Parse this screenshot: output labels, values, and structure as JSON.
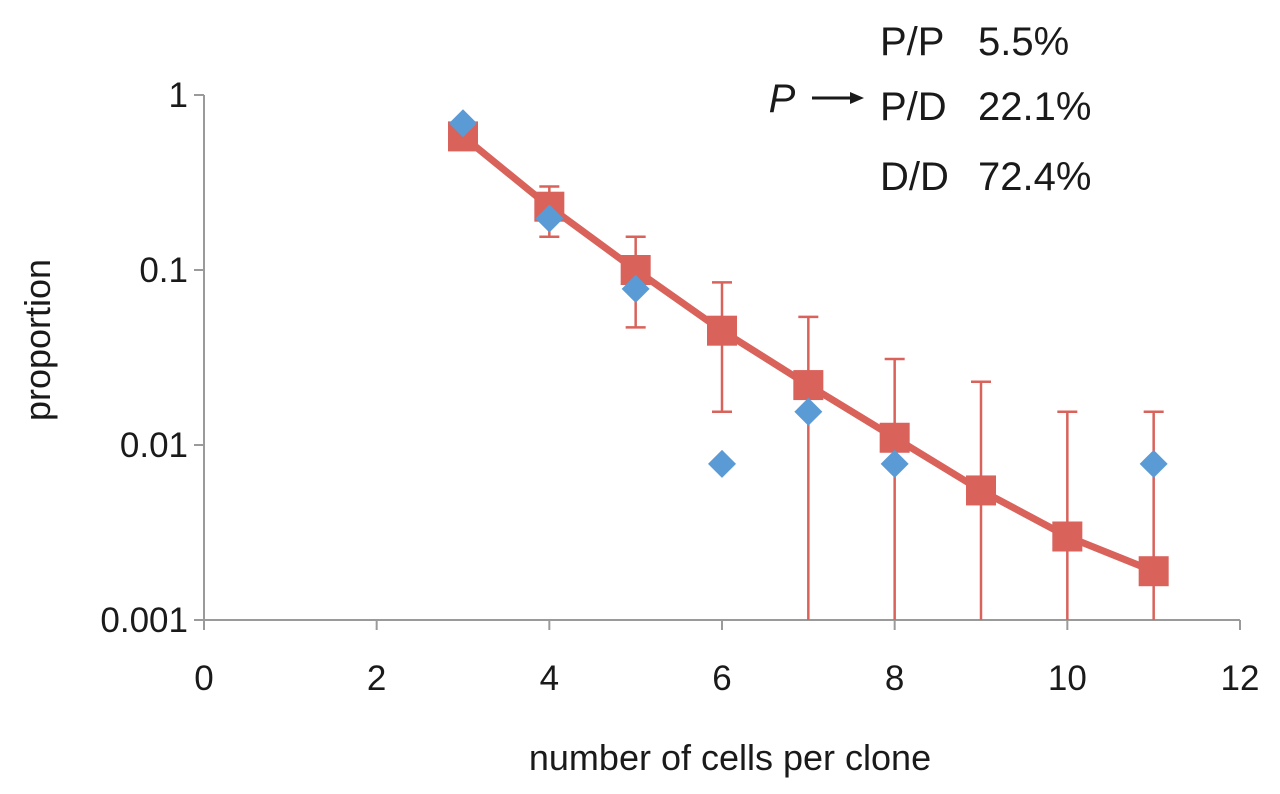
{
  "chart_data": {
    "type": "scatter",
    "xlabel": "number of cells per clone",
    "ylabel": "proportion",
    "xlim": [
      0,
      12
    ],
    "ylim": [
      0.001,
      1
    ],
    "y_scale": "log",
    "x_ticks": [
      0,
      2,
      4,
      6,
      8,
      10,
      12
    ],
    "x_tick_labels": [
      "0",
      "2",
      "4",
      "6",
      "8",
      "10",
      "12"
    ],
    "y_ticks": [
      1,
      0.1,
      0.01,
      0.001
    ],
    "y_tick_labels": [
      "1",
      "0.1",
      "0.01",
      "0.001"
    ],
    "grid": false,
    "series": [
      {
        "marker": "square",
        "line": true,
        "color": "#d9625b",
        "x": [
          3,
          4,
          5,
          6,
          7,
          8,
          9,
          10,
          11
        ],
        "y": [
          0.58,
          0.23,
          0.1,
          0.045,
          0.022,
          0.011,
          0.0055,
          0.003,
          0.0019
        ],
        "error_upper": [
          null,
          0.3,
          0.155,
          0.085,
          0.054,
          0.031,
          0.023,
          0.0155,
          0.0155
        ],
        "error_lower": [
          null,
          0.155,
          0.047,
          0.0155,
          0.001,
          0.001,
          0.001,
          0.001,
          0.001
        ]
      },
      {
        "marker": "diamond",
        "line": false,
        "color": "#5b9bd5",
        "x": [
          3,
          4,
          5,
          6,
          7,
          8,
          11
        ],
        "y": [
          0.69,
          0.197,
          0.078,
          0.0078,
          0.0155,
          0.0078,
          0.0078
        ]
      }
    ],
    "annotation": {
      "arrow_label": "P",
      "rows": [
        {
          "label": "P/P",
          "value": "5.5%"
        },
        {
          "label": "P/D",
          "value": "22.1%"
        },
        {
          "label": "D/D",
          "value": "72.4%"
        }
      ]
    }
  }
}
